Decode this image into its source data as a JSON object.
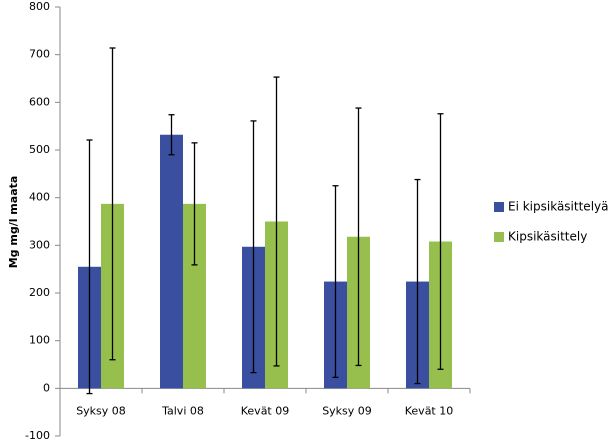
{
  "chart_data": {
    "type": "bar",
    "y_label": "Mg mg/l maata",
    "categories": [
      "Syksy 08",
      "Talvi 08",
      "Kevät 09",
      "Syksy 09",
      "Kevät 10"
    ],
    "series": [
      {
        "name": "Ei kipsikäsittelyä",
        "color": "#3a4fa0",
        "values": [
          255,
          532,
          297,
          224,
          224
        ],
        "errors": [
          266,
          42,
          264,
          201,
          214
        ]
      },
      {
        "name": "Kipsikäsittely",
        "color": "#97bf4e",
        "values": [
          387,
          387,
          350,
          318,
          308
        ],
        "errors": [
          327,
          128,
          303,
          270,
          268
        ]
      }
    ],
    "ylim": [
      -100,
      800
    ],
    "yticks": [
      -100,
      0,
      100,
      200,
      300,
      400,
      500,
      600,
      700,
      800
    ],
    "legend": "right"
  }
}
